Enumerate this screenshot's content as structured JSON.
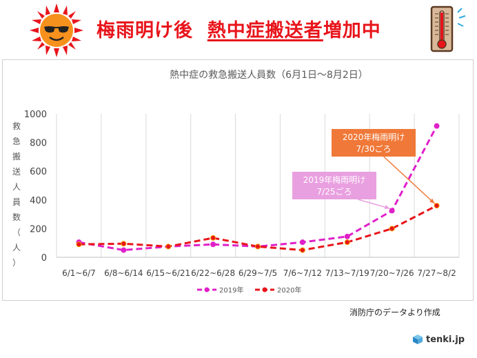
{
  "header": {
    "title_part1": "梅雨明け後",
    "title_part2": "熱中症搬送者",
    "title_part3": "増加中",
    "sun_icon": "sun-with-sunglasses-icon",
    "thermometer_icon": "thermometer-icon"
  },
  "chart_data": {
    "type": "line",
    "title": "熱中症の救急搬送人員数（6月1日〜8月2日）",
    "xlabel": "",
    "ylabel": "救急搬送人員数（人）",
    "ylabel_chars": [
      "救",
      "急",
      "搬",
      "送",
      "人",
      "員",
      "数",
      "（",
      "人",
      "）"
    ],
    "ylim": [
      0,
      1000
    ],
    "yticks": [
      "0",
      "200",
      "400",
      "600",
      "800",
      "1000"
    ],
    "ytick_values": [
      0,
      200,
      400,
      600,
      800,
      1000
    ],
    "categories": [
      "6/1~6/7",
      "6/8~6/14",
      "6/15~6/21",
      "6/22~6/28",
      "6/29~7/5",
      "7/6~7/12",
      "7/13~7/19",
      "7/20~7/26",
      "7/27~8/2"
    ],
    "series": [
      {
        "name": "2019年",
        "color": "#e020c8",
        "values": [
          105,
          50,
          75,
          90,
          75,
          105,
          145,
          325,
          915
        ]
      },
      {
        "name": "2020年",
        "color": "#e8141b",
        "values": [
          90,
          95,
          75,
          135,
          75,
          50,
          105,
          200,
          360
        ]
      }
    ],
    "annotations": [
      {
        "text_line1": "2020年梅雨明け",
        "text_line2": "7/30ごろ",
        "bg": "#f07838",
        "series": 1,
        "point": 8
      },
      {
        "text_line1": "2019年梅雨明け",
        "text_line2": "7/25ごろ",
        "bg": "#e9a0e0",
        "series": 0,
        "point": 7
      }
    ],
    "legend_position": "bottom"
  },
  "source_note": "消防庁のデータより作成",
  "logo_text": "tenki.jp",
  "colors": {
    "accent": "#e8141b",
    "magenta": "#e020c8",
    "grid": "#d9d9d9"
  }
}
